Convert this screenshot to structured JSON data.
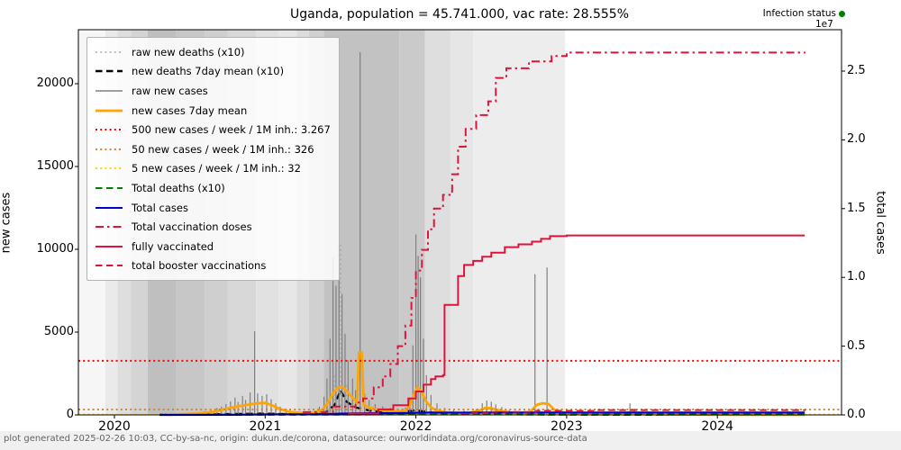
{
  "title": "Uganda, population = 45.741.000, vac rate: 28.555%",
  "infection_status": {
    "label": "Infection status",
    "dot_color": "#008000"
  },
  "footer_text": "plot generated 2025-02-26 10:03, CC-by-sa-nc, origin: dukun.de/corona, datasource: ourworldindata.org/coronavirus-source-data",
  "axes": {
    "left": {
      "label": "new cases",
      "ticks": [
        0,
        5000,
        10000,
        15000,
        20000
      ],
      "max": 23250
    },
    "right": {
      "label": "total cases",
      "ticks": [
        0.0,
        0.5,
        1.0,
        1.5,
        2.0,
        2.5
      ],
      "max": 2.8,
      "multiplier": "1e7"
    },
    "x": {
      "ticks": [
        2020,
        2021,
        2022,
        2023,
        2024
      ]
    }
  },
  "legend": [
    {
      "label": "raw new deaths (x10)",
      "color": "#aaaaaa",
      "dash": "dotted",
      "lw": 1.6
    },
    {
      "label": "new deaths 7day mean (x10)",
      "color": "#000000",
      "dash": "dashed",
      "lw": 2.6
    },
    {
      "label": "raw new cases",
      "color": "#808080",
      "dash": "solid",
      "lw": 1.6
    },
    {
      "label": "new cases 7day mean",
      "color": "#ffa500",
      "dash": "solid",
      "lw": 2.8
    },
    {
      "label": "500 new cases / week / 1M inh.: 3.267",
      "color": "#ff0000",
      "dash": "dotted",
      "lw": 2.0
    },
    {
      "label": "50 new cases / week / 1M inh.: 326",
      "color": "#cd853f",
      "dash": "dotted",
      "lw": 2.0
    },
    {
      "label": "5 new cases / week / 1M inh.: 32",
      "color": "#ffd700",
      "dash": "dotted",
      "lw": 2.0
    },
    {
      "label": "Total deaths (x10)",
      "color": "#008000",
      "dash": "dashed",
      "lw": 2.0
    },
    {
      "label": "Total cases",
      "color": "#0000cc",
      "dash": "solid",
      "lw": 2.0
    },
    {
      "label": "Total vaccination doses",
      "color": "#dc143c",
      "dash": "dashdot",
      "lw": 2.0
    },
    {
      "label": "fully vaccinated",
      "color": "#dc143c",
      "dash": "solid",
      "lw": 2.0
    },
    {
      "label": "total booster vaccinations",
      "color": "#dc143c",
      "dash": "dashed",
      "lw": 2.0
    }
  ],
  "chart_data": {
    "type": "line",
    "x_unit": "year",
    "x_range": [
      2019.76,
      2024.82
    ],
    "left_axis": {
      "label": "new cases",
      "range": [
        0,
        23250
      ]
    },
    "right_axis": {
      "label": "total cases",
      "range": [
        0,
        28000000
      ],
      "displayed_unit": "1e7"
    },
    "thresholds": [
      {
        "name": "500 new cases / week / 1M inh.",
        "value": 3267,
        "color": "#ff0000"
      },
      {
        "name": "50 new cases / week / 1M inh.",
        "value": 326,
        "color": "#cd853f"
      },
      {
        "name": "5 new cases / week / 1M inh.",
        "value": 32,
        "color": "#ffd700"
      }
    ],
    "status_bands": [
      {
        "from": 2019.76,
        "to": 2019.94,
        "shade": "#f6f6f6"
      },
      {
        "from": 2019.94,
        "to": 2020.02,
        "shade": "#eaeaea"
      },
      {
        "from": 2020.02,
        "to": 2020.11,
        "shade": "#dedede"
      },
      {
        "from": 2020.11,
        "to": 2020.22,
        "shade": "#d4d4d4"
      },
      {
        "from": 2020.22,
        "to": 2020.41,
        "shade": "#bfbfbf"
      },
      {
        "from": 2020.41,
        "to": 2020.6,
        "shade": "#c7c7c7"
      },
      {
        "from": 2020.6,
        "to": 2020.75,
        "shade": "#cfcfcf"
      },
      {
        "from": 2020.75,
        "to": 2020.94,
        "shade": "#d8d8d8"
      },
      {
        "from": 2020.94,
        "to": 2021.09,
        "shade": "#e1e1e1"
      },
      {
        "from": 2021.09,
        "to": 2021.21,
        "shade": "#e7e7e7"
      },
      {
        "from": 2021.21,
        "to": 2021.29,
        "shade": "#dcdcdc"
      },
      {
        "from": 2021.29,
        "to": 2021.39,
        "shade": "#d0d0d0"
      },
      {
        "from": 2021.39,
        "to": 2021.89,
        "shade": "#c2c2c2"
      },
      {
        "from": 2021.89,
        "to": 2022.06,
        "shade": "#cacaca"
      },
      {
        "from": 2022.06,
        "to": 2022.23,
        "shade": "#dedede"
      },
      {
        "from": 2022.23,
        "to": 2022.38,
        "shade": "#e6e6e6"
      },
      {
        "from": 2022.38,
        "to": 2022.99,
        "shade": "#ededed"
      },
      {
        "from": 2022.99,
        "to": 2024.82,
        "shade": "#ffffff"
      }
    ],
    "raw_new_cases": [
      [
        2020.4,
        60
      ],
      [
        2020.48,
        90
      ],
      [
        2020.55,
        150
      ],
      [
        2020.6,
        230
      ],
      [
        2020.64,
        320
      ],
      [
        2020.68,
        420
      ],
      [
        2020.71,
        500
      ],
      [
        2020.74,
        650
      ],
      [
        2020.77,
        820
      ],
      [
        2020.8,
        1050
      ],
      [
        2020.82,
        780
      ],
      [
        2020.85,
        1150
      ],
      [
        2020.87,
        900
      ],
      [
        2020.9,
        1350
      ],
      [
        2020.93,
        5050
      ],
      [
        2020.95,
        1300
      ],
      [
        2020.98,
        1150
      ],
      [
        2021.01,
        1250
      ],
      [
        2021.04,
        950
      ],
      [
        2021.07,
        700
      ],
      [
        2021.1,
        500
      ],
      [
        2021.14,
        350
      ],
      [
        2021.18,
        220
      ],
      [
        2021.24,
        160
      ],
      [
        2021.3,
        240
      ],
      [
        2021.36,
        500
      ],
      [
        2021.39,
        1100
      ],
      [
        2021.41,
        2200
      ],
      [
        2021.43,
        4600
      ],
      [
        2021.45,
        9500
      ],
      [
        2021.47,
        7800
      ],
      [
        2021.49,
        10150
      ],
      [
        2021.51,
        7300
      ],
      [
        2021.53,
        4900
      ],
      [
        2021.55,
        3300
      ],
      [
        2021.58,
        2200
      ],
      [
        2021.6,
        1500
      ],
      [
        2021.63,
        21900
      ],
      [
        2021.66,
        1300
      ],
      [
        2021.69,
        900
      ],
      [
        2021.73,
        650
      ],
      [
        2021.78,
        520
      ],
      [
        2021.83,
        420
      ],
      [
        2021.88,
        380
      ],
      [
        2021.93,
        450
      ],
      [
        2021.96,
        1000
      ],
      [
        2021.98,
        4200
      ],
      [
        2022.0,
        10900
      ],
      [
        2022.015,
        9600
      ],
      [
        2022.03,
        8300
      ],
      [
        2022.05,
        4600
      ],
      [
        2022.07,
        2400
      ],
      [
        2022.1,
        1200
      ],
      [
        2022.14,
        700
      ],
      [
        2022.19,
        420
      ],
      [
        2022.25,
        300
      ],
      [
        2022.32,
        260
      ],
      [
        2022.4,
        350
      ],
      [
        2022.44,
        700
      ],
      [
        2022.47,
        870
      ],
      [
        2022.5,
        800
      ],
      [
        2022.53,
        640
      ],
      [
        2022.57,
        480
      ],
      [
        2022.62,
        300
      ],
      [
        2022.68,
        180
      ],
      [
        2022.75,
        140
      ],
      [
        2022.79,
        8500
      ],
      [
        2022.83,
        200
      ],
      [
        2022.87,
        8900
      ],
      [
        2022.92,
        160
      ],
      [
        2023.0,
        120
      ],
      [
        2023.1,
        90
      ],
      [
        2023.2,
        70
      ],
      [
        2023.42,
        700
      ],
      [
        2023.45,
        380
      ],
      [
        2023.55,
        120
      ],
      [
        2023.7,
        60
      ],
      [
        2023.9,
        40
      ],
      [
        2024.1,
        50
      ],
      [
        2024.3,
        35
      ],
      [
        2024.5,
        60
      ]
    ],
    "raw_new_deaths_x10": [
      [
        2021.46,
        2400
      ],
      [
        2021.5,
        10270
      ],
      [
        2021.54,
        1800
      ],
      [
        2022.0,
        1100
      ]
    ],
    "new_deaths_7day_mean_x10": [
      [
        2020.3,
        5
      ],
      [
        2020.8,
        60
      ],
      [
        2021.0,
        80
      ],
      [
        2021.2,
        40
      ],
      [
        2021.4,
        150
      ],
      [
        2021.46,
        600
      ],
      [
        2021.5,
        1500
      ],
      [
        2021.54,
        800
      ],
      [
        2021.6,
        450
      ],
      [
        2021.7,
        250
      ],
      [
        2021.85,
        120
      ],
      [
        2022.0,
        280
      ],
      [
        2022.1,
        150
      ],
      [
        2022.3,
        40
      ],
      [
        2022.6,
        30
      ],
      [
        2023.0,
        15
      ],
      [
        2024.58,
        5
      ]
    ],
    "new_cases_7day_mean": [
      [
        2020.35,
        10
      ],
      [
        2020.55,
        80
      ],
      [
        2020.65,
        180
      ],
      [
        2020.72,
        320
      ],
      [
        2020.78,
        450
      ],
      [
        2020.84,
        550
      ],
      [
        2020.9,
        640
      ],
      [
        2020.95,
        700
      ],
      [
        2021.0,
        730
      ],
      [
        2021.05,
        560
      ],
      [
        2021.1,
        350
      ],
      [
        2021.16,
        190
      ],
      [
        2021.24,
        120
      ],
      [
        2021.32,
        130
      ],
      [
        2021.38,
        300
      ],
      [
        2021.42,
        800
      ],
      [
        2021.45,
        1300
      ],
      [
        2021.48,
        1650
      ],
      [
        2021.51,
        1700
      ],
      [
        2021.54,
        1450
      ],
      [
        2021.58,
        1050
      ],
      [
        2021.61,
        750
      ],
      [
        2021.622,
        3750
      ],
      [
        2021.64,
        3750
      ],
      [
        2021.655,
        600
      ],
      [
        2021.7,
        420
      ],
      [
        2021.76,
        300
      ],
      [
        2021.82,
        230
      ],
      [
        2021.88,
        200
      ],
      [
        2021.93,
        250
      ],
      [
        2021.96,
        600
      ],
      [
        2021.99,
        1300
      ],
      [
        2022.01,
        1650
      ],
      [
        2022.04,
        1350
      ],
      [
        2022.07,
        800
      ],
      [
        2022.1,
        450
      ],
      [
        2022.14,
        250
      ],
      [
        2022.2,
        150
      ],
      [
        2022.28,
        110
      ],
      [
        2022.36,
        130
      ],
      [
        2022.42,
        260
      ],
      [
        2022.46,
        420
      ],
      [
        2022.5,
        400
      ],
      [
        2022.54,
        300
      ],
      [
        2022.59,
        190
      ],
      [
        2022.65,
        110
      ],
      [
        2022.72,
        70
      ],
      [
        2022.76,
        180
      ],
      [
        2022.8,
        600
      ],
      [
        2022.84,
        700
      ],
      [
        2022.88,
        650
      ],
      [
        2022.92,
        300
      ],
      [
        2023.0,
        100
      ],
      [
        2023.1,
        60
      ],
      [
        2023.2,
        40
      ],
      [
        2023.38,
        60
      ],
      [
        2023.42,
        160
      ],
      [
        2023.46,
        130
      ],
      [
        2023.52,
        60
      ],
      [
        2023.65,
        25
      ],
      [
        2023.85,
        15
      ],
      [
        2024.1,
        12
      ],
      [
        2024.35,
        10
      ],
      [
        2024.58,
        10
      ]
    ],
    "total_cases_1e7": [
      [
        2020.3,
        0.0002
      ],
      [
        2020.7,
        0.0008
      ],
      [
        2020.9,
        0.002
      ],
      [
        2020.95,
        0.0035
      ],
      [
        2021.05,
        0.0042
      ],
      [
        2021.3,
        0.0047
      ],
      [
        2021.42,
        0.006
      ],
      [
        2021.5,
        0.009
      ],
      [
        2021.56,
        0.0105
      ],
      [
        2021.63,
        0.0115
      ],
      [
        2021.7,
        0.0125
      ],
      [
        2021.85,
        0.013
      ],
      [
        2021.95,
        0.0135
      ],
      [
        2022.02,
        0.0158
      ],
      [
        2022.08,
        0.0163
      ],
      [
        2022.3,
        0.0165
      ],
      [
        2022.55,
        0.0168
      ],
      [
        2022.9,
        0.017
      ],
      [
        2023.2,
        0.0171
      ],
      [
        2024.58,
        0.0172
      ]
    ],
    "total_deaths_x10_1e7": [
      [
        2020.3,
        0.0001
      ],
      [
        2021.4,
        0.0005
      ],
      [
        2021.6,
        0.002
      ],
      [
        2022.0,
        0.003
      ],
      [
        2022.5,
        0.0035
      ],
      [
        2024.58,
        0.0036
      ]
    ],
    "total_vaccination_doses_1e7": [
      [
        2021.25,
        0.02
      ],
      [
        2021.45,
        0.06
      ],
      [
        2021.6,
        0.09
      ],
      [
        2021.65,
        0.12
      ],
      [
        2021.72,
        0.2
      ],
      [
        2021.78,
        0.28
      ],
      [
        2021.83,
        0.37
      ],
      [
        2021.88,
        0.5
      ],
      [
        2021.93,
        0.65
      ],
      [
        2021.97,
        0.85
      ],
      [
        2022.0,
        1.05
      ],
      [
        2022.04,
        1.2
      ],
      [
        2022.08,
        1.35
      ],
      [
        2022.12,
        1.5
      ],
      [
        2022.18,
        1.6
      ],
      [
        2022.24,
        1.75
      ],
      [
        2022.28,
        1.95
      ],
      [
        2022.33,
        2.08
      ],
      [
        2022.4,
        2.18
      ],
      [
        2022.48,
        2.28
      ],
      [
        2022.53,
        2.45
      ],
      [
        2022.6,
        2.52
      ],
      [
        2022.75,
        2.57
      ],
      [
        2022.9,
        2.61
      ],
      [
        2023.0,
        2.635
      ],
      [
        2024.58,
        2.64
      ]
    ],
    "fully_vaccinated_1e7": [
      [
        2021.55,
        0.01
      ],
      [
        2021.75,
        0.04
      ],
      [
        2021.85,
        0.07
      ],
      [
        2021.95,
        0.12
      ],
      [
        2022.0,
        0.17
      ],
      [
        2022.05,
        0.22
      ],
      [
        2022.1,
        0.26
      ],
      [
        2022.13,
        0.28
      ],
      [
        2022.18,
        0.29
      ],
      [
        2022.19,
        0.8
      ],
      [
        2022.27,
        0.8
      ],
      [
        2022.28,
        1.01
      ],
      [
        2022.32,
        1.09
      ],
      [
        2022.38,
        1.12
      ],
      [
        2022.44,
        1.15
      ],
      [
        2022.5,
        1.18
      ],
      [
        2022.59,
        1.22
      ],
      [
        2022.68,
        1.24
      ],
      [
        2022.77,
        1.26
      ],
      [
        2022.83,
        1.28
      ],
      [
        2022.89,
        1.3
      ],
      [
        2023.0,
        1.305
      ],
      [
        2024.58,
        1.305
      ]
    ],
    "total_booster_1e7": [
      [
        2022.3,
        0.005
      ],
      [
        2022.35,
        0.012
      ],
      [
        2022.5,
        0.022
      ],
      [
        2022.8,
        0.03
      ],
      [
        2023.2,
        0.035
      ],
      [
        2024.58,
        0.038
      ]
    ]
  },
  "colors": {
    "raw_cases": "#808080",
    "raw_deaths": "#a8a8a8",
    "deaths_mean": "#000000",
    "cases_mean": "#ffa500",
    "thr_red": "#ff0000",
    "thr_orange": "#cd853f",
    "thr_yellow": "#ffd700",
    "total_deaths": "#008000",
    "total_cases": "#0000cc",
    "vac": "#dc143c",
    "spine": "#000000"
  }
}
